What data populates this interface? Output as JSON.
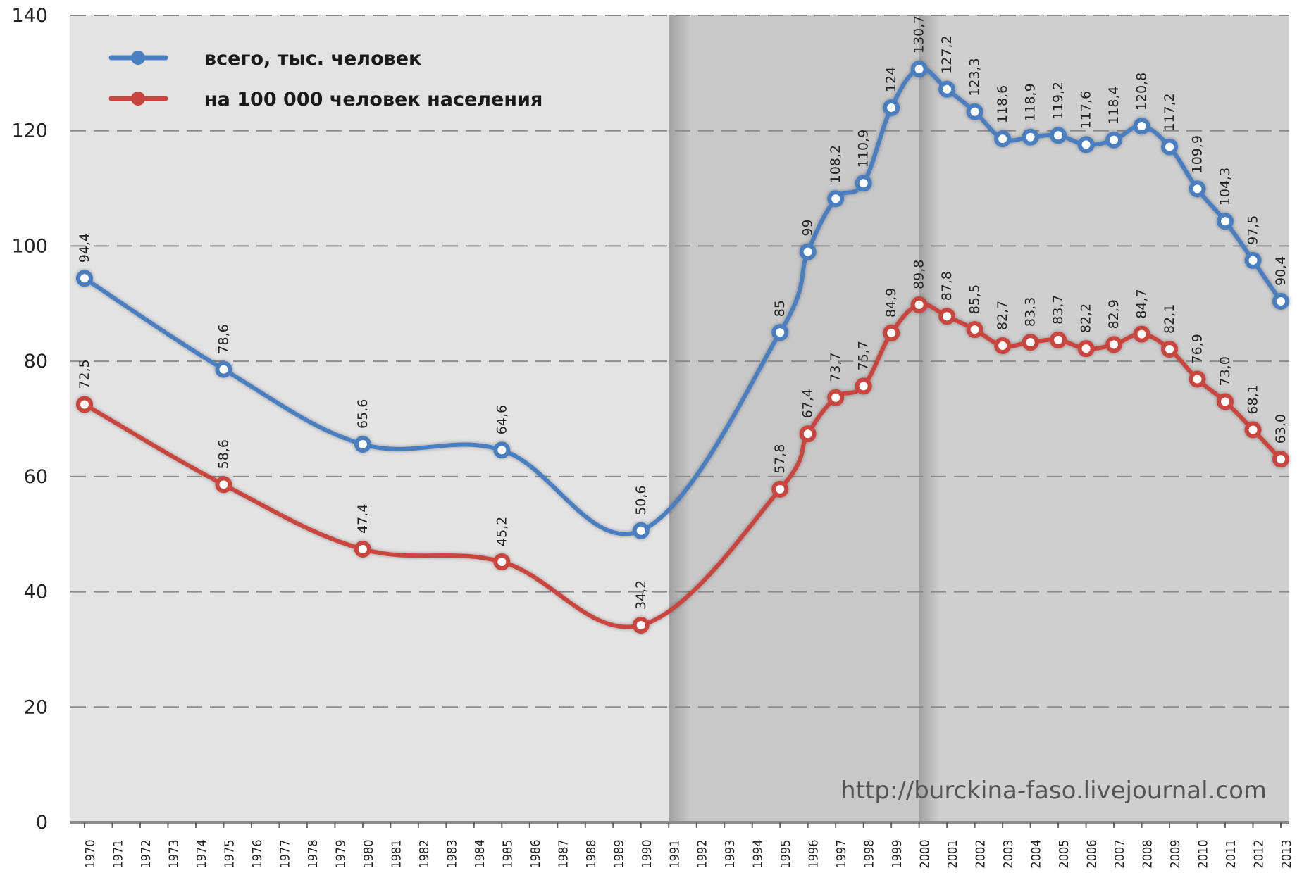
{
  "chart_data": {
    "type": "line",
    "title": "",
    "xlabel": "",
    "ylabel": "",
    "ylim": [
      0,
      140
    ],
    "yticks": [
      0,
      20,
      40,
      60,
      80,
      100,
      120,
      140
    ],
    "x_tick_years": [
      1970,
      1971,
      1972,
      1973,
      1974,
      1975,
      1976,
      1977,
      1978,
      1979,
      1980,
      1981,
      1982,
      1983,
      1984,
      1985,
      1986,
      1987,
      1988,
      1989,
      1990,
      1991,
      1992,
      1993,
      1994,
      1995,
      1996,
      1997,
      1998,
      1999,
      2000,
      2001,
      2002,
      2003,
      2004,
      2005,
      2006,
      2007,
      2008,
      2009,
      2010,
      2011,
      2012,
      2013
    ],
    "grid": "horizontal dashed",
    "legend_position": "top-left",
    "shaded_periods": [
      {
        "from": 1991,
        "to": 2000,
        "color": "#c8c8c8"
      },
      {
        "from": 2000,
        "to": 2013,
        "color": "#cfcfcf"
      }
    ],
    "series": [
      {
        "name": "всего, тыс. человек",
        "color": "#4a7fc1",
        "x": [
          1970,
          1975,
          1980,
          1985,
          1990,
          1995,
          1996,
          1997,
          1998,
          1999,
          2000,
          2001,
          2002,
          2003,
          2004,
          2005,
          2006,
          2007,
          2008,
          2009,
          2010,
          2011,
          2012,
          2013
        ],
        "values": [
          94.4,
          78.6,
          65.6,
          64.6,
          50.6,
          85,
          99,
          108.2,
          110.9,
          124,
          130.7,
          127.2,
          123.3,
          118.6,
          118.9,
          119.2,
          117.6,
          118.4,
          120.8,
          117.2,
          109.9,
          104.3,
          97.5,
          90.4
        ],
        "labels": [
          "94,4",
          "78,6",
          "65,6",
          "64,6",
          "50,6",
          "85",
          "99",
          "108,2",
          "110,9",
          "124",
          "130,7",
          "127,2",
          "123,3",
          "118,6",
          "118,9",
          "119,2",
          "117,6",
          "118,4",
          "120,8",
          "117,2",
          "109,9",
          "104,3",
          "97,5",
          "90,4"
        ]
      },
      {
        "name": "на 100 000 человек населения",
        "color": "#c9443e",
        "x": [
          1970,
          1975,
          1980,
          1985,
          1990,
          1995,
          1996,
          1997,
          1998,
          1999,
          2000,
          2001,
          2002,
          2003,
          2004,
          2005,
          2006,
          2007,
          2008,
          2009,
          2010,
          2011,
          2012,
          2013
        ],
        "values": [
          72.5,
          58.6,
          47.4,
          45.2,
          34.2,
          57.8,
          67.4,
          73.7,
          75.7,
          84.9,
          89.8,
          87.8,
          85.5,
          82.7,
          83.3,
          83.7,
          82.2,
          82.9,
          84.7,
          82.1,
          76.9,
          73.0,
          68.1,
          63.0
        ],
        "labels": [
          "72,5",
          "58,6",
          "47,4",
          "45,2",
          "34,2",
          "57,8",
          "67,4",
          "73,7",
          "75,7",
          "84,9",
          "89,8",
          "87,8",
          "85,5",
          "82,7",
          "83,3",
          "83,7",
          "82,2",
          "82,9",
          "84,7",
          "82,1",
          "76,9",
          "73,0",
          "68,1",
          "63,0"
        ]
      }
    ],
    "watermark": "http://burckina-faso.livejournal.com"
  }
}
